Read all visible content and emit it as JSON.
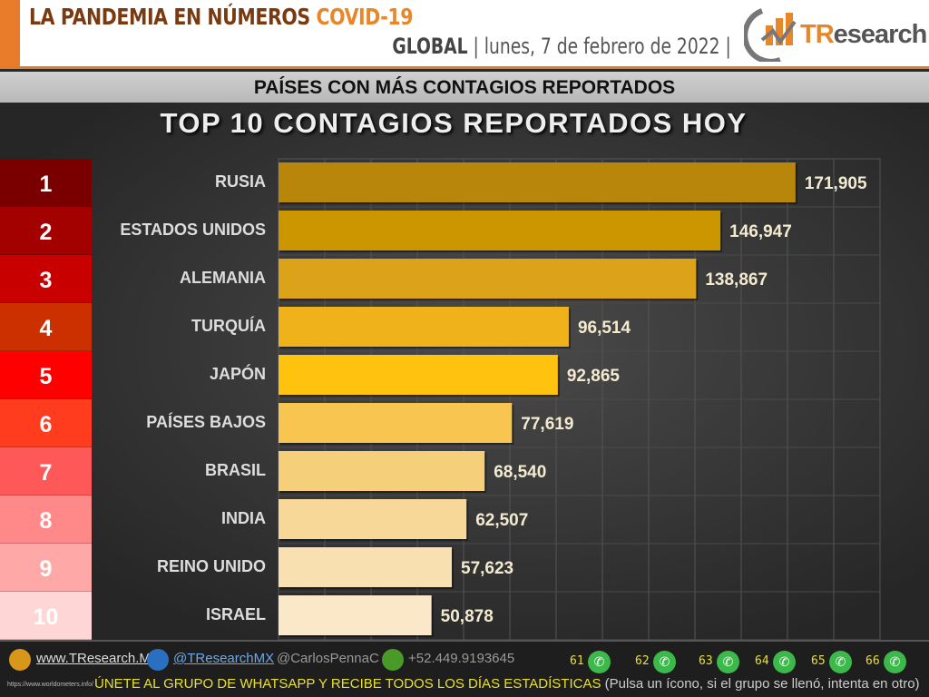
{
  "header": {
    "title_main": "LA PANDEMIA EN NÚMEROS",
    "title_accent": "COVID-19",
    "region": "GLOBAL",
    "date": "lunes, 7 de febrero de 2022",
    "logo_t": "TR",
    "logo_rest": "esearch"
  },
  "band": "PAÍSES CON MÁS CONTAGIOS REPORTADOS",
  "ranks": [
    "1",
    "2",
    "3",
    "4",
    "5",
    "6",
    "7",
    "8",
    "9",
    "10"
  ],
  "rank_colors": [
    "#7a0000",
    "#a30000",
    "#c80000",
    "#cc3000",
    "#ff0000",
    "#ff3c1e",
    "#ff5858",
    "#ff8888",
    "#ffa8a8",
    "#ffd6d6"
  ],
  "chart_data": {
    "type": "bar",
    "orientation": "horizontal",
    "title": "TOP 10 CONTAGIOS REPORTADOS HOY",
    "categories": [
      "RUSIA",
      "ESTADOS UNIDOS",
      "ALEMANIA",
      "TURQUÍA",
      "JAPÓN",
      "PAÍSES BAJOS",
      "BRASIL",
      "INDIA",
      "REINO UNIDO",
      "ISRAEL"
    ],
    "values": [
      171905,
      146947,
      138867,
      96514,
      92865,
      77619,
      68540,
      62507,
      57623,
      50878
    ],
    "value_labels": [
      "171,905",
      "146,947",
      "138,867",
      "96,514",
      "92,865",
      "77,619",
      "68,540",
      "62,507",
      "57,623",
      "50,878"
    ],
    "xlim": [
      0,
      200000
    ],
    "grid": true,
    "bar_colors": [
      "#b8860b",
      "#cc9600",
      "#dca21a",
      "#f0b21a",
      "#ffc20e",
      "#f7c550",
      "#f5cf7a",
      "#f7d898",
      "#f9e0b0",
      "#fbe8c8"
    ]
  },
  "footer": {
    "website": "www.TResearch.Mx",
    "twitter": "@TResearchMX",
    "personal": "@CarlosPennaC",
    "phone": "+52.449.9193645",
    "groups": [
      "61",
      "62",
      "63",
      "64",
      "65",
      "66"
    ],
    "source": "https://www.worldometers.info/",
    "cta": "ÚNETE AL GRUPO DE WHATSAPP Y RECIBE TODOS LOS DÍAS ESTADÍSTICAS",
    "cta_note": "(Pulsa un ícono, si el grupo se llenó, intenta en otro)"
  }
}
